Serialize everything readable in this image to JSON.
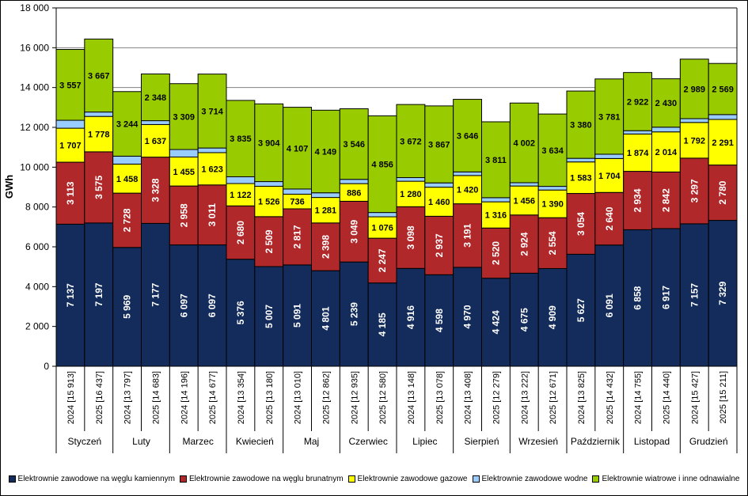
{
  "chart_data": {
    "type": "bar",
    "stacked": true,
    "title": "",
    "xlabel": "",
    "ylabel": "GWh",
    "ylim": [
      0,
      18000
    ],
    "yticks": [
      0,
      2000,
      4000,
      6000,
      8000,
      10000,
      12000,
      14000,
      16000,
      18000
    ],
    "ytick_labels": [
      "0",
      "2 000",
      "4 000",
      "6 000",
      "8 000",
      "10 000",
      "12 000",
      "14 000",
      "16 000",
      "18 000"
    ],
    "grid": true,
    "legend_position": "bottom",
    "months": [
      "Styczeń",
      "Luty",
      "Marzec",
      "Kwiecień",
      "Maj",
      "Czerwiec",
      "Lipiec",
      "Sierpień",
      "Wrzesień",
      "Październik",
      "Listopad",
      "Grudzień"
    ],
    "categories": [
      "2024 [15 913]",
      "2025 [16 437]",
      "2024 [13 797]",
      "2025 [14 683]",
      "2024 [14 196]",
      "2025 [14 677]",
      "2024 [13 354]",
      "2025 [13 180]",
      "2024 [13 010]",
      "2025 [12 862]",
      "2024 [12 935]",
      "2025 [12 580]",
      "2024 [13 148]",
      "2025 [13 078]",
      "2024 [13 408]",
      "2025 [12 279]",
      "2024 [13 222]",
      "2025 [12 671]",
      "2024 [13 825]",
      "2025 [14 432]",
      "2024 [14 755]",
      "2025 [14 440]",
      "2024 [15 427]",
      "2025 [15 211]"
    ],
    "totals": [
      15913,
      16437,
      13797,
      14683,
      14196,
      14677,
      13354,
      13180,
      13010,
      12862,
      12935,
      12580,
      13148,
      13078,
      13408,
      12279,
      13222,
      12671,
      13825,
      14432,
      14755,
      14440,
      15427,
      15211
    ],
    "series": [
      {
        "name": "Elektrownie zawodowe na węglu kamiennym",
        "color": "#132c5b",
        "label_style": "light-vertical",
        "labels": [
          "7 137",
          "7 197",
          "5 969",
          "7 177",
          "6 097",
          "6 097",
          "5 376",
          "5 007",
          "5 091",
          "4 801",
          "5 239",
          "4 185",
          "4 916",
          "4 598",
          "4 970",
          "4 424",
          "4 675",
          "4 909",
          "5 627",
          "6 091",
          "6 858",
          "6 917",
          "7 157",
          "7 329"
        ],
        "values": [
          7137,
          7197,
          5969,
          7177,
          6097,
          6097,
          5376,
          5007,
          5091,
          4801,
          5239,
          4185,
          4916,
          4598,
          4970,
          4424,
          4675,
          4909,
          5627,
          6091,
          6858,
          6917,
          7157,
          7329
        ]
      },
      {
        "name": "Elektrownie zawodowe na węglu brunatnym",
        "color": "#b1282a",
        "label_style": "light-vertical",
        "labels": [
          "3 113",
          "3 575",
          "2 728",
          "3 328",
          "2 958",
          "3 011",
          "2 680",
          "2 509",
          "2 817",
          "2 398",
          "3 049",
          "2 247",
          "3 098",
          "2 937",
          "3 191",
          "2 520",
          "2 924",
          "2 554",
          "3 054",
          "2 640",
          "2 934",
          "2 842",
          "3 297",
          "2 780"
        ],
        "values": [
          3113,
          3575,
          2728,
          3328,
          2958,
          3011,
          2680,
          2509,
          2817,
          2398,
          3049,
          2247,
          3098,
          2937,
          3191,
          2520,
          2924,
          2554,
          3054,
          2640,
          2934,
          2842,
          3297,
          2780
        ]
      },
      {
        "name": "Elektrownie zawodowe gazowe",
        "color": "#ffff00",
        "label_style": "dark",
        "labels": [
          "1 707",
          "1 778",
          "1 458",
          "1 637",
          "1 455",
          "1 623",
          "1 122",
          "1 526",
          "736",
          "1 281",
          "886",
          "1 076",
          "1 280",
          "1 460",
          "1 420",
          "1 316",
          "1 456",
          "1 390",
          "1 583",
          "1 704",
          "1 874",
          "2 014",
          "1 792",
          "2 291"
        ],
        "values": [
          1707,
          1778,
          1458,
          1637,
          1455,
          1623,
          1122,
          1526,
          736,
          1281,
          886,
          1076,
          1280,
          1460,
          1420,
          1316,
          1456,
          1390,
          1583,
          1704,
          1874,
          2014,
          1792,
          2291
        ]
      },
      {
        "name": "Elektrownie zawodowe wodne",
        "color": "#99ccff",
        "label_style": "none",
        "values": [
          399,
          220,
          398,
          193,
          377,
          232,
          341,
          234,
          259,
          233,
          215,
          216,
          182,
          216,
          181,
          208,
          165,
          184,
          181,
          216,
          167,
          237,
          192,
          242
        ]
      },
      {
        "name": "Elektrownie wiatrowe i inne odnawialne",
        "color": "#99cc00",
        "label_style": "dark",
        "labels": [
          "3 557",
          "3 667",
          "3 244",
          "2 348",
          "3 309",
          "3 714",
          "3 835",
          "3 904",
          "4 107",
          "4 149",
          "3 546",
          "4 856",
          "3 672",
          "3 867",
          "3 646",
          "3 811",
          "4 002",
          "3 634",
          "3 380",
          "3 781",
          "2 922",
          "2 430",
          "2 989",
          "2 569"
        ],
        "values": [
          3557,
          3667,
          3244,
          2348,
          3309,
          3714,
          3835,
          3904,
          4107,
          4149,
          3546,
          4856,
          3672,
          3867,
          3646,
          3811,
          4002,
          3634,
          3380,
          3781,
          2922,
          2430,
          2989,
          2569
        ]
      }
    ]
  }
}
